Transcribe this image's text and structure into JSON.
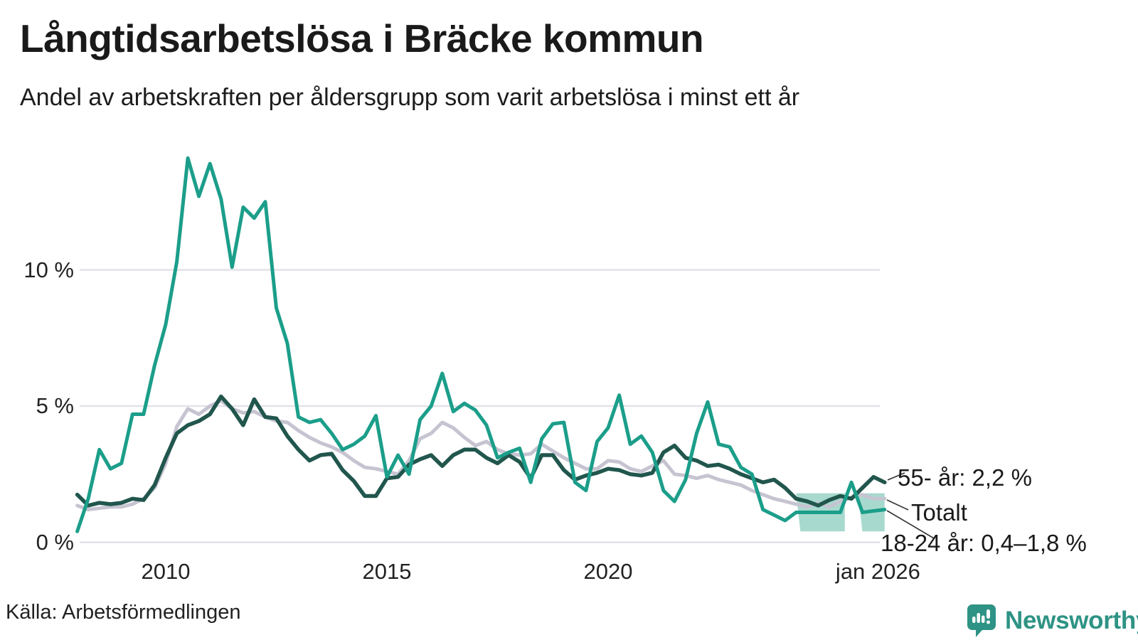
{
  "header": {
    "title": "Långtidsarbetslösa i Bräcke kommun",
    "subtitle": "Andel av arbetskraften per åldersgrupp som varit arbetslösa i minst ett år"
  },
  "axis": {
    "y_ticks": [
      {
        "value": 10,
        "label": "10 %"
      },
      {
        "value": 5,
        "label": "5 %"
      },
      {
        "value": 0,
        "label": "0 %"
      }
    ],
    "x_ticks": [
      {
        "year": 2010,
        "label": "2010"
      },
      {
        "year": 2015,
        "label": "2015"
      },
      {
        "year": 2020,
        "label": "2020"
      },
      {
        "year": 2026.1,
        "label": "jan 2026"
      }
    ]
  },
  "annotations": {
    "age55": "55- år: 2,2 %",
    "total": "Totalt",
    "youth": "18-24 år: 0,4–1,8 %"
  },
  "footer": {
    "source": "Källa: Arbetsförmedlingen",
    "brand": "Newsworthy"
  },
  "colors": {
    "youth": "#1b9e8a",
    "age55": "#21564d",
    "total": "#c6c4d1",
    "band": "#9fd5c9",
    "grid": "#e3e2e8",
    "leader": "#333333",
    "brand_teal": "#2e9385"
  },
  "chart_data": {
    "type": "line",
    "x_start_year": 2008,
    "points_per_year": 4,
    "x_end_year": 2026.25,
    "ylabel": "%",
    "ylim": [
      0,
      14.5
    ],
    "grid_values": [
      0,
      5,
      10
    ],
    "series": [
      {
        "name": "18-24 år",
        "color_key": "youth",
        "final_label": "18-24 år: 0,4–1,8 %",
        "values": [
          0.4,
          1.6,
          3.4,
          2.7,
          2.9,
          4.7,
          4.7,
          6.5,
          8.0,
          10.3,
          14.1,
          12.7,
          13.9,
          12.6,
          10.1,
          12.3,
          11.9,
          12.5,
          8.6,
          7.3,
          4.6,
          4.4,
          4.5,
          4.0,
          3.4,
          3.6,
          3.9,
          4.65,
          2.4,
          3.2,
          2.5,
          4.5,
          5.0,
          6.2,
          4.8,
          5.1,
          4.85,
          4.3,
          3.1,
          3.3,
          3.45,
          2.2,
          3.8,
          4.35,
          4.4,
          2.2,
          1.9,
          3.7,
          4.2,
          5.4,
          3.6,
          3.9,
          3.3,
          1.9,
          1.5,
          2.3,
          4.0,
          5.15,
          3.6,
          3.5,
          2.75,
          2.5,
          1.2,
          1.0,
          0.8,
          1.1,
          1.1,
          1.1,
          1.1,
          1.1,
          2.2,
          1.1,
          1.15,
          1.2
        ]
      },
      {
        "name": "Totalt",
        "color_key": "total",
        "final_label": "Totalt",
        "values": [
          1.35,
          1.2,
          1.25,
          1.3,
          1.3,
          1.4,
          1.6,
          2.0,
          2.9,
          4.25,
          4.9,
          4.7,
          5.0,
          5.2,
          4.9,
          4.75,
          4.8,
          4.6,
          4.45,
          4.4,
          4.1,
          3.85,
          3.65,
          3.5,
          3.3,
          3.0,
          2.75,
          2.7,
          2.6,
          2.5,
          3.0,
          3.8,
          4.0,
          4.4,
          4.2,
          3.85,
          3.55,
          3.7,
          3.4,
          3.25,
          3.2,
          3.25,
          3.6,
          3.35,
          3.1,
          2.9,
          2.7,
          2.7,
          3.0,
          2.95,
          2.7,
          2.6,
          2.8,
          3.0,
          2.5,
          2.45,
          2.35,
          2.45,
          2.3,
          2.2,
          2.1,
          1.9,
          1.75,
          1.6,
          1.5,
          1.4,
          1.3,
          1.45,
          1.3,
          1.5,
          1.65,
          1.75,
          1.6,
          1.6
        ]
      },
      {
        "name": "55- år",
        "color_key": "age55",
        "final_label": "55- år: 2,2 %",
        "values": [
          1.75,
          1.35,
          1.45,
          1.4,
          1.45,
          1.6,
          1.55,
          2.1,
          3.1,
          4.0,
          4.3,
          4.45,
          4.7,
          5.35,
          4.9,
          4.3,
          5.25,
          4.6,
          4.55,
          3.9,
          3.4,
          3.0,
          3.2,
          3.25,
          2.65,
          2.25,
          1.7,
          1.7,
          2.35,
          2.4,
          2.85,
          3.05,
          3.2,
          2.8,
          3.2,
          3.4,
          3.4,
          3.1,
          2.9,
          3.2,
          2.95,
          2.35,
          3.2,
          3.2,
          2.65,
          2.3,
          2.45,
          2.55,
          2.7,
          2.65,
          2.5,
          2.45,
          2.55,
          3.3,
          3.55,
          3.1,
          3.0,
          2.8,
          2.85,
          2.7,
          2.5,
          2.35,
          2.2,
          2.3,
          2.0,
          1.6,
          1.5,
          1.35,
          1.55,
          1.7,
          1.6,
          2.0,
          2.4,
          2.2
        ]
      }
    ],
    "uncertainty_band": {
      "series": "18-24 år",
      "low": 0.4,
      "high": 1.8,
      "segments_years": [
        [
          2024.25,
          2025.35
        ],
        [
          2025.65,
          2026.25
        ]
      ]
    }
  }
}
